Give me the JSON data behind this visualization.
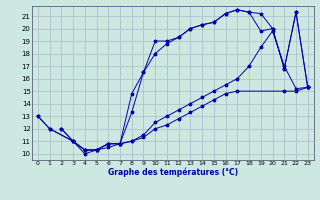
{
  "title": "Graphe des températures (°C)",
  "background_color": "#cce8e0",
  "grid_color": "#aabbcc",
  "line_color": "#0000aa",
  "xlim": [
    -0.5,
    23.5
  ],
  "ylim": [
    9.5,
    21.8
  ],
  "xticks": [
    0,
    1,
    2,
    3,
    4,
    5,
    6,
    7,
    8,
    9,
    10,
    11,
    12,
    13,
    14,
    15,
    16,
    17,
    18,
    19,
    20,
    21,
    22,
    23
  ],
  "yticks": [
    10,
    11,
    12,
    13,
    14,
    15,
    16,
    17,
    18,
    19,
    20,
    21
  ],
  "series": [
    {
      "x": [
        0,
        1,
        3,
        4,
        5,
        6,
        7,
        8,
        9,
        10,
        11,
        12,
        13,
        14,
        15,
        16,
        17,
        18,
        19,
        20,
        21,
        22,
        23
      ],
      "y": [
        13.0,
        12.0,
        11.0,
        10.3,
        10.3,
        10.8,
        10.8,
        13.3,
        16.5,
        19.0,
        19.0,
        19.3,
        20.0,
        20.3,
        20.5,
        21.2,
        21.5,
        21.3,
        21.2,
        20.0,
        16.8,
        21.3,
        15.3
      ]
    },
    {
      "x": [
        0,
        1,
        3,
        4,
        5,
        6,
        7,
        8,
        9,
        10,
        11,
        12,
        13,
        14,
        15,
        16,
        17,
        18,
        19,
        20,
        21,
        22,
        23
      ],
      "y": [
        13.0,
        12.0,
        11.0,
        10.3,
        10.3,
        10.8,
        10.8,
        14.8,
        16.5,
        18.0,
        18.8,
        19.3,
        20.0,
        20.3,
        20.5,
        21.2,
        21.5,
        21.3,
        19.8,
        20.0,
        16.8,
        21.3,
        15.3
      ]
    },
    {
      "x": [
        2,
        3,
        4,
        5,
        6,
        7,
        8,
        9,
        10,
        11,
        12,
        13,
        14,
        15,
        16,
        17,
        21,
        22,
        23
      ],
      "y": [
        12.0,
        11.0,
        10.0,
        10.3,
        10.5,
        10.8,
        11.0,
        11.3,
        12.0,
        12.3,
        12.8,
        13.3,
        13.8,
        14.3,
        14.8,
        15.0,
        15.0,
        15.0,
        15.3
      ]
    },
    {
      "x": [
        2,
        3,
        4,
        5,
        6,
        7,
        8,
        9,
        10,
        11,
        12,
        13,
        14,
        15,
        16,
        17,
        18,
        19,
        20,
        21,
        22,
        23
      ],
      "y": [
        12.0,
        11.0,
        10.3,
        10.3,
        10.8,
        10.8,
        11.0,
        11.5,
        12.5,
        13.0,
        13.5,
        14.0,
        14.5,
        15.0,
        15.5,
        16.0,
        17.0,
        18.5,
        19.8,
        17.0,
        15.2,
        15.3
      ]
    }
  ]
}
